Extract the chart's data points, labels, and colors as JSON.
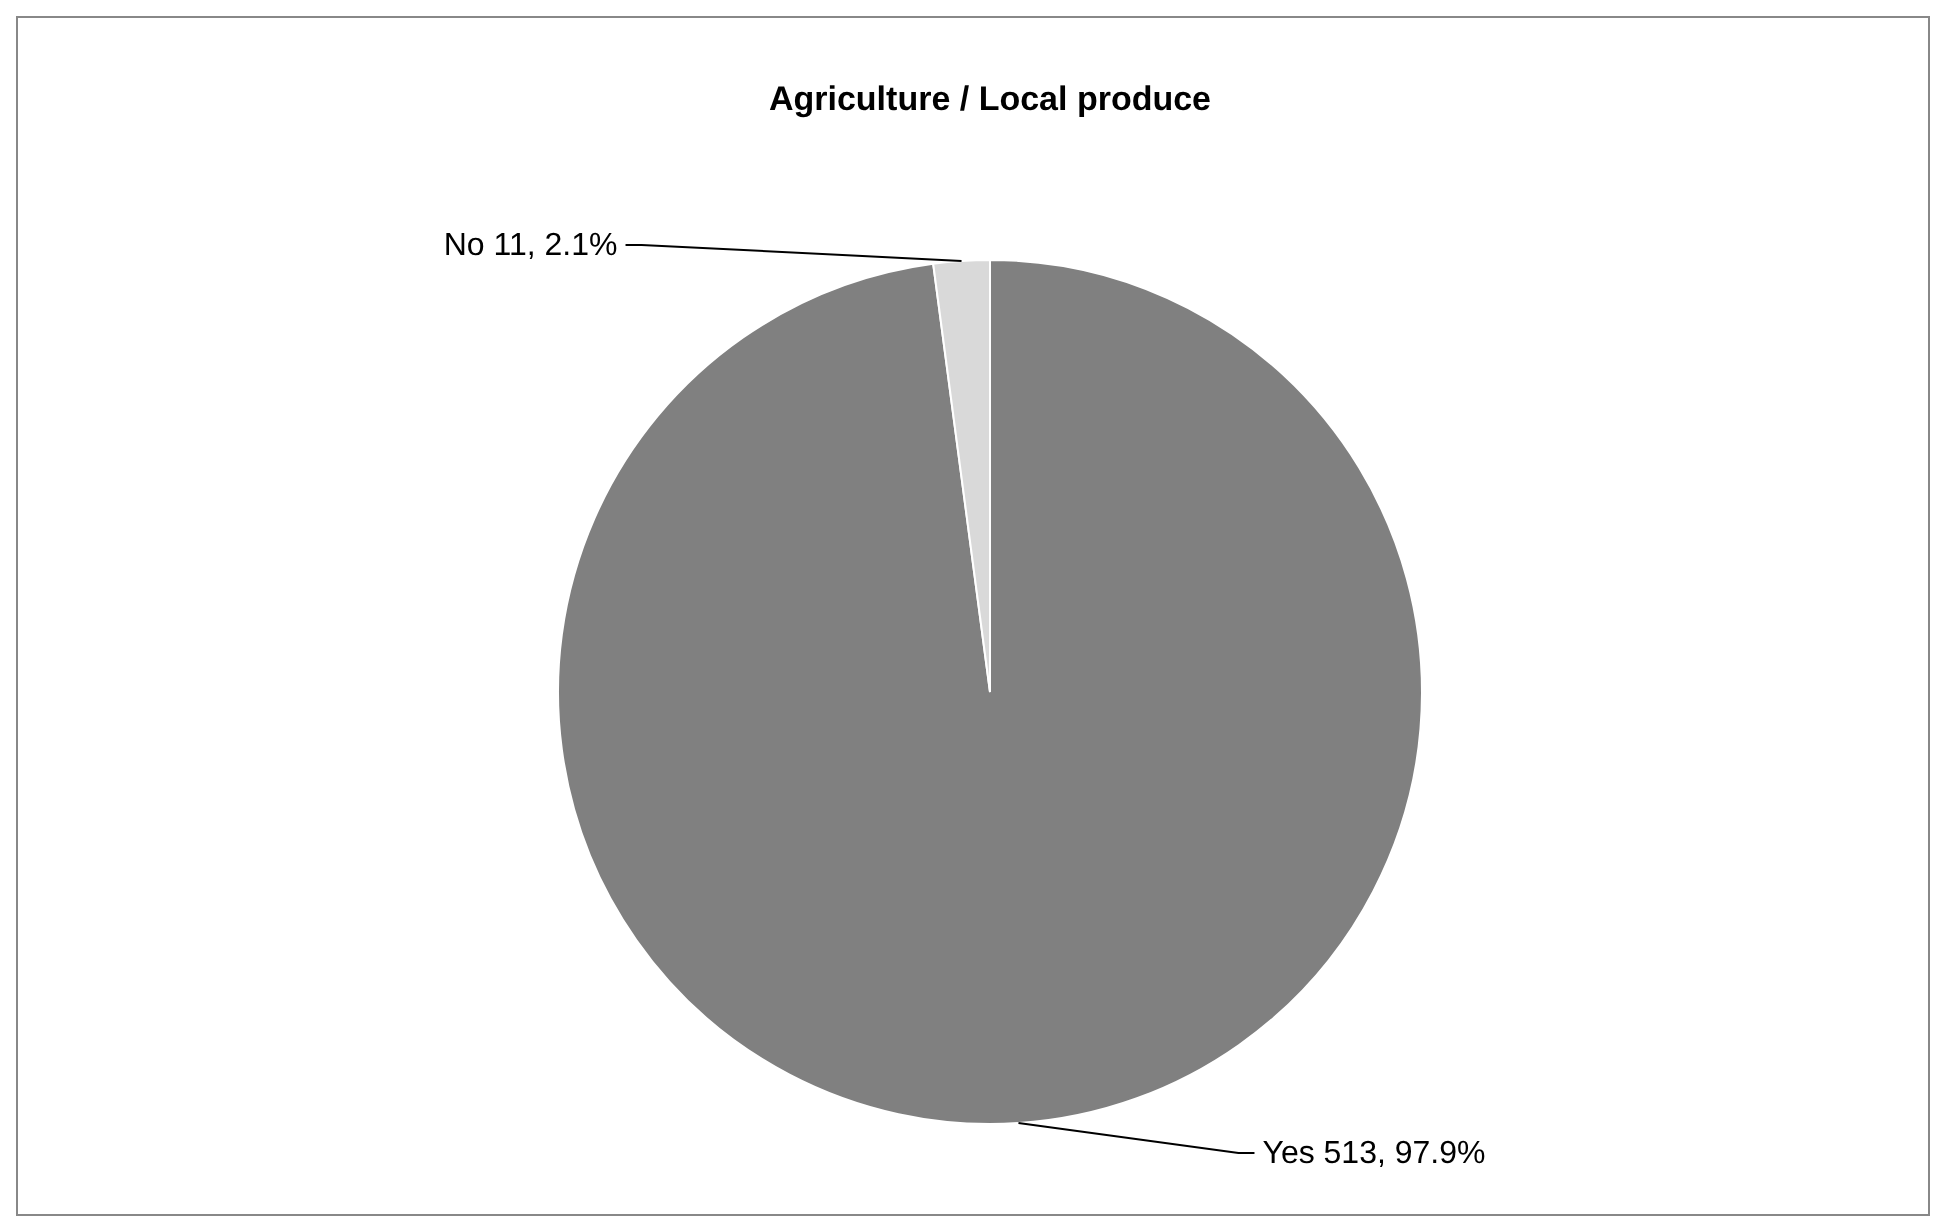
{
  "chart_data": {
    "type": "pie",
    "title": "Agriculture / Local produce",
    "categories": [
      "Yes",
      "No"
    ],
    "values": [
      513,
      11
    ],
    "colors": [
      "#808080",
      "#d9d9d9"
    ],
    "value_labels": [
      "513, 97.9%",
      "11, 2.1%"
    ]
  }
}
